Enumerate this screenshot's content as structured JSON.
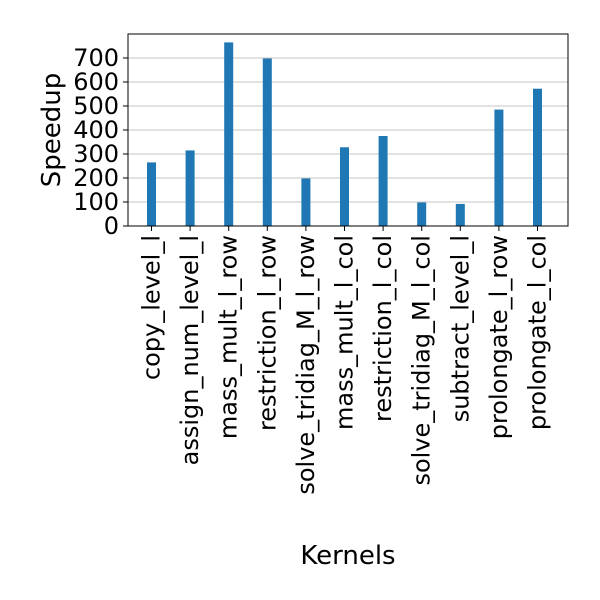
{
  "chart_data": {
    "type": "bar",
    "title": "",
    "xlabel": "Kernels",
    "ylabel": "Speedup",
    "categories": [
      "copy_level_l",
      "assign_num_level_l",
      "mass_mult_l_row",
      "restriction_l_row",
      "solve_tridiag_M_l_row",
      "mass_mult_l_col",
      "restriction_l_col",
      "solve_tridiag_M_l_col",
      "subtract_level_l",
      "prolongate_l_row",
      "prolongate_l_col"
    ],
    "values": [
      265,
      315,
      765,
      698,
      198,
      328,
      375,
      98,
      92,
      485,
      572
    ],
    "ylim": [
      0,
      800
    ],
    "yticks": [
      0,
      100,
      200,
      300,
      400,
      500,
      600,
      700
    ],
    "grid": "horizontal",
    "legend": "none",
    "bar_color": "#1f77b4"
  }
}
